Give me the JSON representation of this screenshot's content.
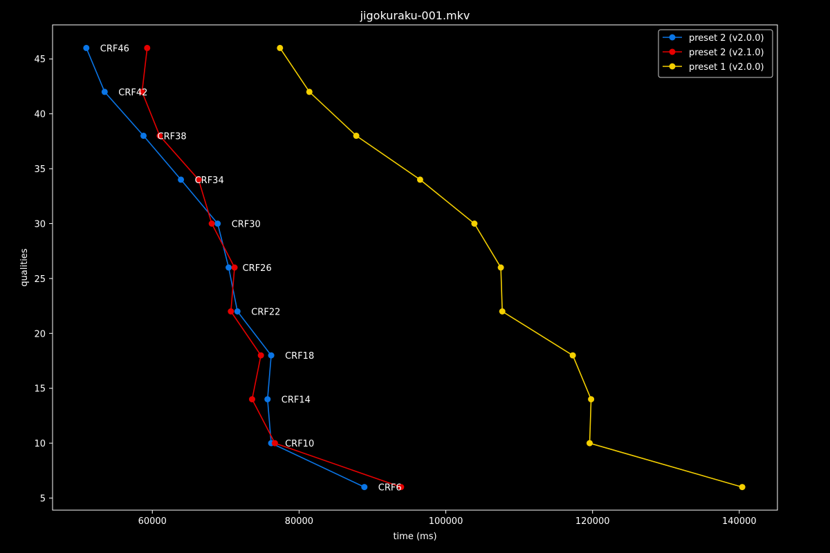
{
  "chart_data": {
    "type": "line",
    "title": "jigokuraku-001.mkv",
    "xlabel": "time (ms)",
    "ylabel": "qualities",
    "xlim": [
      46400,
      145200
    ],
    "ylim": [
      3.9,
      48.1
    ],
    "xticks": [
      60000,
      80000,
      100000,
      120000,
      140000
    ],
    "yticks": [
      5,
      10,
      15,
      20,
      25,
      30,
      35,
      40,
      45
    ],
    "grid": false,
    "legend_position": "top-right",
    "background": "#000000",
    "foreground": "#ffffff",
    "series": [
      {
        "name": "preset 2 (v2.0.0)",
        "color": "#0a75e6",
        "points": [
          {
            "x": 51000,
            "y": 46
          },
          {
            "x": 53500,
            "y": 42
          },
          {
            "x": 58800,
            "y": 38
          },
          {
            "x": 63900,
            "y": 34
          },
          {
            "x": 68900,
            "y": 30
          },
          {
            "x": 70400,
            "y": 26
          },
          {
            "x": 71600,
            "y": 22
          },
          {
            "x": 76200,
            "y": 18
          },
          {
            "x": 75700,
            "y": 14
          },
          {
            "x": 76200,
            "y": 10
          },
          {
            "x": 88900,
            "y": 6
          }
        ]
      },
      {
        "name": "preset 2 (v2.1.0)",
        "color": "#e60000",
        "points": [
          {
            "x": 59300,
            "y": 46
          },
          {
            "x": 58600,
            "y": 42
          },
          {
            "x": 61000,
            "y": 38
          },
          {
            "x": 66300,
            "y": 34
          },
          {
            "x": 68100,
            "y": 30
          },
          {
            "x": 71200,
            "y": 26
          },
          {
            "x": 70700,
            "y": 22
          },
          {
            "x": 74800,
            "y": 18
          },
          {
            "x": 73600,
            "y": 14
          },
          {
            "x": 76700,
            "y": 10
          },
          {
            "x": 93900,
            "y": 6
          }
        ]
      },
      {
        "name": "preset 1 (v2.0.0)",
        "color": "#f5d000",
        "points": [
          {
            "x": 77400,
            "y": 46
          },
          {
            "x": 81400,
            "y": 42
          },
          {
            "x": 87800,
            "y": 38
          },
          {
            "x": 96500,
            "y": 34
          },
          {
            "x": 103900,
            "y": 30
          },
          {
            "x": 107500,
            "y": 26
          },
          {
            "x": 107700,
            "y": 22
          },
          {
            "x": 117300,
            "y": 18
          },
          {
            "x": 119800,
            "y": 14
          },
          {
            "x": 119600,
            "y": 10
          },
          {
            "x": 140400,
            "y": 6
          }
        ]
      }
    ],
    "annotations": [
      {
        "text": "CRF46",
        "x": 51000,
        "y": 46
      },
      {
        "text": "CRF42",
        "x": 53500,
        "y": 42
      },
      {
        "text": "CRF38",
        "x": 58800,
        "y": 38
      },
      {
        "text": "CRF34",
        "x": 63900,
        "y": 34
      },
      {
        "text": "CRF30",
        "x": 68900,
        "y": 30
      },
      {
        "text": "CRF26",
        "x": 70400,
        "y": 26
      },
      {
        "text": "CRF22",
        "x": 71600,
        "y": 22
      },
      {
        "text": "CRF18",
        "x": 76200,
        "y": 18
      },
      {
        "text": "CRF14",
        "x": 75700,
        "y": 14
      },
      {
        "text": "CRF10",
        "x": 76200,
        "y": 10
      },
      {
        "text": "CRF6",
        "x": 88900,
        "y": 6
      }
    ]
  }
}
